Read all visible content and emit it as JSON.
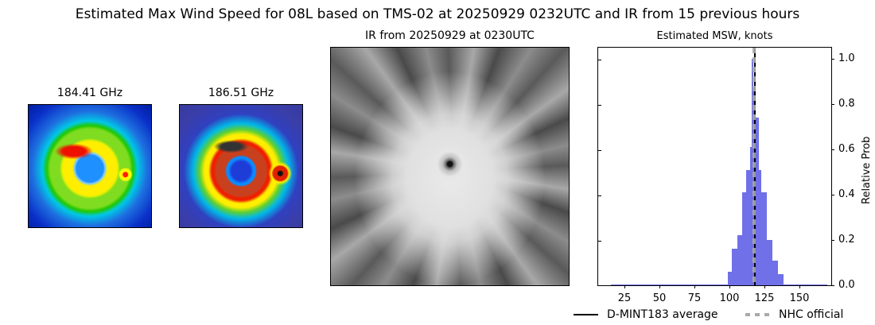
{
  "figure": {
    "suptitle": "Estimated Max Wind Speed for 08L based on TMS-02 at 20250929 0232UTC and IR from 15 previous hours"
  },
  "panels": {
    "mw1": {
      "title": "184.41 GHz"
    },
    "mw2": {
      "title": "186.51 GHz"
    },
    "ir": {
      "title": "IR from 20250929 at 0230UTC"
    },
    "hist": {
      "title": "Estimated MSW, knots",
      "ylabel": "Relative Prob"
    }
  },
  "legend": {
    "items": [
      {
        "label": "D-MINT183 average",
        "style": "solid",
        "color": "#000000"
      },
      {
        "label": "NHC official",
        "style": "dashed",
        "color": "#aaaaaa"
      }
    ]
  },
  "chart_data": {
    "type": "bar",
    "title": "Estimated MSW, knots",
    "xlabel": "",
    "ylabel": "Relative Prob",
    "xlim": [
      6,
      173
    ],
    "ylim": [
      0.0,
      1.05
    ],
    "xticks": [
      "25",
      "50",
      "75",
      "100",
      "125",
      "150"
    ],
    "yticks": [
      "0.0",
      "0.2",
      "0.4",
      "0.6",
      "0.8",
      "1.0"
    ],
    "yaxis_position": "right",
    "bar_color": "#7070e8",
    "bins": [
      {
        "x0": 15,
        "x1": 99,
        "value": 0.004
      },
      {
        "x0": 99,
        "x1": 102,
        "value": 0.06
      },
      {
        "x0": 102,
        "x1": 106,
        "value": 0.16
      },
      {
        "x0": 106,
        "x1": 109,
        "value": 0.22
      },
      {
        "x0": 109,
        "x1": 112,
        "value": 0.41
      },
      {
        "x0": 112,
        "x1": 115,
        "value": 0.51
      },
      {
        "x0": 115,
        "x1": 116,
        "value": 0.61
      },
      {
        "x0": 116,
        "x1": 117,
        "value": 1.0
      },
      {
        "x0": 117,
        "x1": 118,
        "value": 0.87
      },
      {
        "x0": 118,
        "x1": 119,
        "value": 0.78
      },
      {
        "x0": 119,
        "x1": 121,
        "value": 0.74
      },
      {
        "x0": 121,
        "x1": 123,
        "value": 0.51
      },
      {
        "x0": 123,
        "x1": 127,
        "value": 0.41
      },
      {
        "x0": 127,
        "x1": 131,
        "value": 0.2
      },
      {
        "x0": 131,
        "x1": 135,
        "value": 0.11
      },
      {
        "x0": 135,
        "x1": 139,
        "value": 0.05
      },
      {
        "x0": 139,
        "x1": 170,
        "value": 0.004
      }
    ],
    "lines": [
      {
        "name": "D-MINT183 average",
        "x": 118,
        "style": "solid",
        "color": "#000000"
      },
      {
        "name": "NHC official",
        "x": 117.5,
        "style": "dashed",
        "color": "#aaaaaa"
      }
    ],
    "legend_position": "below"
  }
}
